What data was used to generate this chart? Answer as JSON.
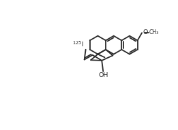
{
  "background": "#ffffff",
  "line_color": "#2a2a2a",
  "line_width": 1.3,
  "figsize": [
    2.61,
    1.91
  ],
  "dpi": 100,
  "font_size": 6.8,
  "oh_label": "OH",
  "methoxy_o": "O",
  "methoxy_ch3": "CH₃",
  "isotope_label": "125",
  "iodine_label": "I"
}
